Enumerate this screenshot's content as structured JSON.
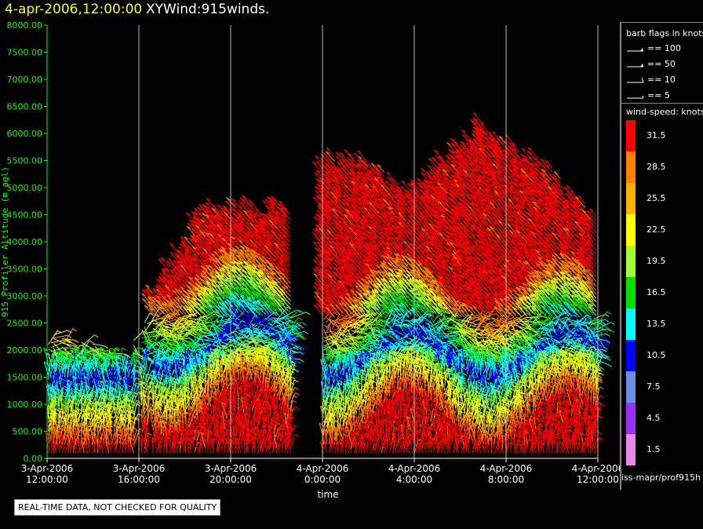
{
  "header": {
    "datetime": "4-apr-2006,12:00:00",
    "product": "XYWind:915winds."
  },
  "legend": {
    "barb_title": "barb flags in knots",
    "barbs": [
      {
        "kind": "pennant",
        "label": "== 100"
      },
      {
        "kind": "pennant",
        "label": "== 50"
      },
      {
        "kind": "full",
        "label": "== 10"
      },
      {
        "kind": "half",
        "label": "== 5"
      }
    ],
    "speed_title": "wind-speed: knots",
    "speeds": [
      {
        "label": "31.5",
        "color": "#ff0000"
      },
      {
        "label": "28.5",
        "color": "#ff8000"
      },
      {
        "label": "25.5",
        "color": "#ffb000"
      },
      {
        "label": "22.5",
        "color": "#ffff00"
      },
      {
        "label": "19.5",
        "color": "#a0ff30"
      },
      {
        "label": "16.5",
        "color": "#00e000"
      },
      {
        "label": "13.5",
        "color": "#00ffff"
      },
      {
        "label": "10.5",
        "color": "#0000ff"
      },
      {
        "label": "7.5",
        "color": "#6a8ee8"
      },
      {
        "label": "4.5",
        "color": "#9a30ff"
      },
      {
        "label": "1.5",
        "color": "#ee82ee"
      }
    ],
    "source": "iss-mapr/prof915h"
  },
  "footer": {
    "quality_note": "REAL-TIME DATA, NOT CHECKED FOR QUALITY"
  },
  "chart_data": {
    "type": "scatter",
    "title": "4-apr-2006,12:00:00  XYWind:915winds.",
    "xlabel": "time",
    "ylabel": "915 Profiler Altitude (m agl)",
    "ylim": [
      0,
      8000
    ],
    "yticks": [
      "0.00",
      "500.00",
      "1000.00",
      "1500.00",
      "2000.00",
      "2500.00",
      "3000.00",
      "3500.00",
      "4000.00",
      "4500.00",
      "5000.00",
      "5500.00",
      "6000.00",
      "6500.00",
      "7000.00",
      "7500.00",
      "8000.00"
    ],
    "xticks": [
      {
        "date": "3-Apr-2006",
        "time": "12:00:00"
      },
      {
        "date": "3-Apr-2006",
        "time": "16:00:00"
      },
      {
        "date": "3-Apr-2006",
        "time": "20:00:00"
      },
      {
        "date": "4-Apr-2006",
        "time": "0:00:00"
      },
      {
        "date": "4-Apr-2006",
        "time": "4:00:00"
      },
      {
        "date": "4-Apr-2006",
        "time": "8:00:00"
      },
      {
        "date": "4-Apr-2006",
        "time": "12:00:00"
      }
    ],
    "xlim_hours": [
      0,
      24
    ],
    "grid": "vertical",
    "wind_speed_colorbar_knots": [
      1.5,
      4.5,
      7.5,
      10.5,
      13.5,
      16.5,
      19.5,
      22.5,
      25.5,
      28.5,
      31.5
    ],
    "data_gap_hours": [
      10.7,
      12.0
    ],
    "max_data_altitude_m": [
      {
        "hour": 0.0,
        "altitude": 2400
      },
      {
        "hour": 3.5,
        "altitude": 2000
      },
      {
        "hour": 4.5,
        "altitude": 3000
      },
      {
        "hour": 6.0,
        "altitude": 4000
      },
      {
        "hour": 7.0,
        "altitude": 4800
      },
      {
        "hour": 9.0,
        "altitude": 4700
      },
      {
        "hour": 10.2,
        "altitude": 4800
      },
      {
        "hour": 12.5,
        "altitude": 5600
      },
      {
        "hour": 14.0,
        "altitude": 5500
      },
      {
        "hour": 16.0,
        "altitude": 5000
      },
      {
        "hour": 19.0,
        "altitude": 6200
      },
      {
        "hour": 22.0,
        "altitude": 5400
      },
      {
        "hour": 24.0,
        "altitude": 4500
      }
    ]
  }
}
